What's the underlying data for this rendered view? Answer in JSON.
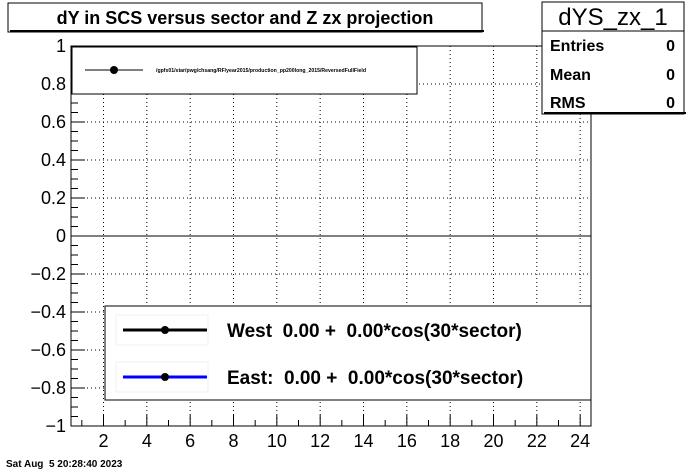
{
  "title": "dY in SCS versus sector and Z zx projection",
  "stats": {
    "name": "dYS_zx_1",
    "rows": [
      {
        "label": "Entries",
        "value": "0"
      },
      {
        "label": "Mean",
        "value": "0"
      },
      {
        "label": "RMS",
        "value": "0"
      }
    ]
  },
  "top_legend": {
    "path": "/gpfs01/star/pwg/chsang/RF/year2015/production_pp200long_2015/ReversedFullField"
  },
  "fit_legend": [
    {
      "label": "West  0.00 +  0.00*cos(30*sector)",
      "color": "#000000"
    },
    {
      "label": "East:  0.00 +  0.00*cos(30*sector)",
      "color": "#0000ff"
    }
  ],
  "timestamp": "Sat Aug  5 20:28:40 2023",
  "chart_data": {
    "type": "scatter",
    "title": "dY in SCS versus sector and Z zx projection",
    "xlabel": "",
    "ylabel": "",
    "xlim": [
      0.5,
      24.5
    ],
    "ylim": [
      -1,
      1
    ],
    "x_ticks": [
      2,
      4,
      6,
      8,
      10,
      12,
      14,
      16,
      18,
      20,
      22,
      24
    ],
    "y_ticks": [
      -1,
      -0.8,
      -0.6,
      -0.4,
      -0.2,
      0,
      0.2,
      0.4,
      0.6,
      0.8,
      1
    ],
    "x_tick_labels": [
      "2",
      "4",
      "6",
      "8",
      "10",
      "12",
      "14",
      "16",
      "18",
      "20",
      "22",
      "24"
    ],
    "y_tick_labels": [
      "−1",
      "−0.8",
      "−0.6",
      "−0.4",
      "−0.2",
      "0",
      "0.2",
      "0.4",
      "0.6",
      "0.8",
      "1"
    ],
    "grid": true,
    "zero_line": true,
    "series": []
  }
}
